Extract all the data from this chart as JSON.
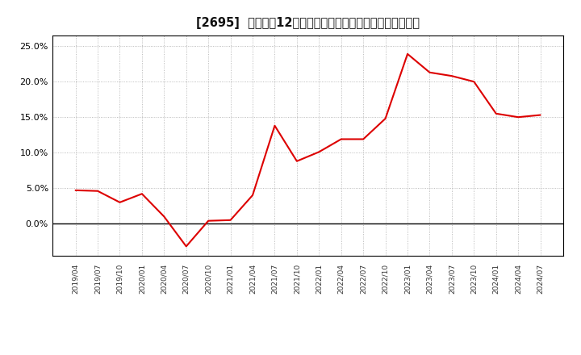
{
  "title": "[2695]  売上高の12か月移動合計の対前年同期増減率の推移",
  "line_color": "#dd0000",
  "background_color": "#ffffff",
  "grid_color": "#aaaaaa",
  "ylim": [
    -0.045,
    0.265
  ],
  "yticks": [
    0.0,
    0.05,
    0.1,
    0.15,
    0.2,
    0.25
  ],
  "dates": [
    "2019/04",
    "2019/07",
    "2019/10",
    "2020/01",
    "2020/04",
    "2020/07",
    "2020/10",
    "2021/01",
    "2021/04",
    "2021/07",
    "2021/10",
    "2022/01",
    "2022/04",
    "2022/07",
    "2022/10",
    "2023/01",
    "2023/04",
    "2023/07",
    "2023/10",
    "2024/01",
    "2024/04",
    "2024/07"
  ],
  "values": [
    0.047,
    0.046,
    0.03,
    0.042,
    0.01,
    -0.032,
    0.004,
    0.005,
    0.04,
    0.138,
    0.088,
    0.101,
    0.119,
    0.119,
    0.148,
    0.239,
    0.213,
    0.208,
    0.2,
    0.155,
    0.15,
    0.153
  ]
}
